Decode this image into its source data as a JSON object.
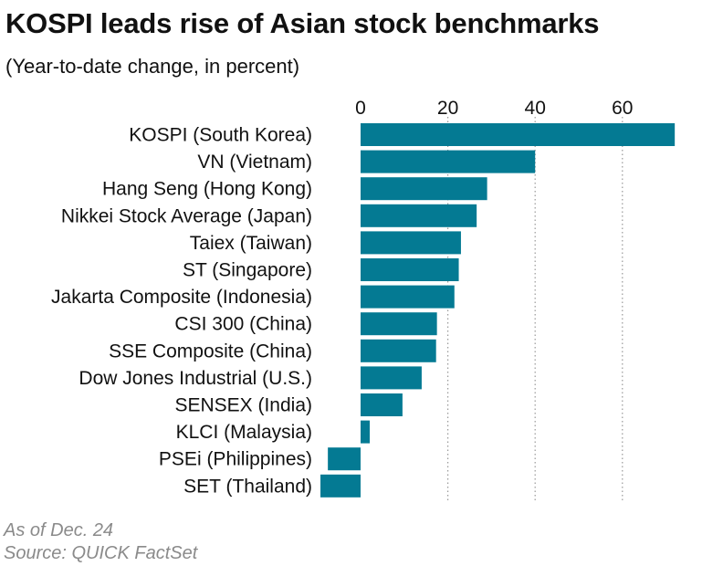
{
  "header": {
    "title": "KOSPI leads rise of Asian stock benchmarks",
    "subtitle": "(Year-to-date change, in percent)"
  },
  "footer": {
    "note": "As of Dec. 24",
    "source": "Source: QUICK FactSet"
  },
  "colors": {
    "bar": "#047a93",
    "grid": "#999999"
  },
  "chart_data": {
    "type": "bar",
    "orientation": "horizontal",
    "title": "KOSPI leads rise of Asian stock benchmarks",
    "subtitle": "(Year-to-date change, in percent)",
    "xlabel": "",
    "ylabel": "",
    "xlim": [
      -9,
      72
    ],
    "ticks": [
      0,
      20,
      40,
      60
    ],
    "tick_labels": [
      "0",
      "20",
      "40",
      "60"
    ],
    "grid": "vertical dotted",
    "categories": [
      "KOSPI (South Korea)",
      "VN (Vietnam)",
      "Hang Seng (Hong Kong)",
      "Nikkei Stock Average (Japan)",
      "Taiex (Taiwan)",
      "ST (Singapore)",
      "Jakarta Composite (Indonesia)",
      "CSI 300 (China)",
      "SSE Composite (China)",
      "Dow Jones Industrial (U.S.)",
      "SENSEX (India)",
      "KLCI (Malaysia)",
      "PSEi (Philippines)",
      "SET (Thailand)"
    ],
    "values": [
      72,
      40,
      29,
      26.6,
      23,
      22.5,
      21.5,
      17.5,
      17.3,
      14,
      9.6,
      2.1,
      -7.5,
      -9.2
    ]
  }
}
